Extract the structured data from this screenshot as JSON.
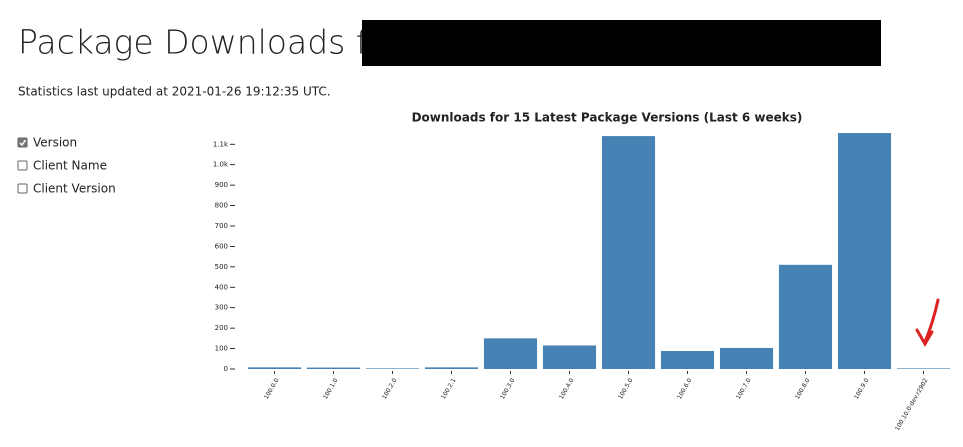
{
  "header": {
    "title": "Package Downloads for",
    "updated": "Statistics last updated at 2021-01-26 19:12:35 UTC."
  },
  "options": [
    {
      "label": "Version",
      "checked": true
    },
    {
      "label": "Client Name",
      "checked": false
    },
    {
      "label": "Client Version",
      "checked": false
    }
  ],
  "chart_data": {
    "type": "bar",
    "title": "Downloads for 15 Latest Package Versions (Last 6 weeks)",
    "categories": [
      "100.0.0",
      "100.1.0",
      "100.2.0",
      "100.2.1",
      "100.3.0",
      "100.4.0",
      "100.5.0",
      "100.6.0",
      "100.7.0",
      "100.8.0",
      "100.9.0",
      "100.10.0-dev.r2902"
    ],
    "values": [
      8,
      7,
      3,
      8,
      150,
      115,
      1140,
      88,
      103,
      510,
      1155,
      3
    ],
    "color": "#4682b4",
    "ylim": [
      0,
      1160
    ],
    "yticks": [
      0,
      100,
      200,
      300,
      400,
      500,
      600,
      700,
      800,
      900,
      {
        "value": 1000,
        "label": "1.0k"
      },
      {
        "value": 1100,
        "label": "1.1k"
      }
    ]
  }
}
